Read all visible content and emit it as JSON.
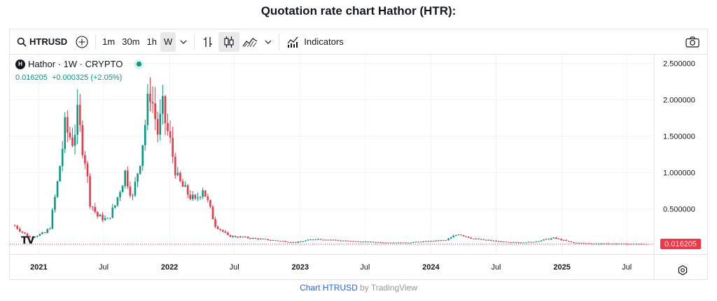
{
  "page_title": "Quotation rate chart Hathor (HTR):",
  "toolbar": {
    "symbol": "HTRUSD",
    "intervals": [
      "1m",
      "30m",
      "1h",
      "W"
    ],
    "active_interval": "W",
    "indicators_label": "Indicators",
    "icons": [
      "search-icon",
      "add-symbol-icon",
      "chevron-down-icon",
      "bar-style-icon",
      "candles-icon",
      "area-icon",
      "indicators-icon",
      "camera-icon"
    ]
  },
  "legend": {
    "name": "Hathor · 1W · CRYPTO",
    "last_price": "0.016205",
    "change": "+0.000325 (+2.05%)"
  },
  "price_tag": "0.016205",
  "attribution": {
    "link_text": "Chart HTRUSD",
    "suffix": " by TradingView"
  },
  "colors": {
    "up": "#089981",
    "down": "#f23645",
    "grid": "#f0f3fa",
    "last_price_line": "#f23645"
  },
  "chart_data": {
    "type": "candlestick",
    "timeframe": "1W",
    "y_ticks": [
      0.5,
      1.0,
      1.5,
      2.0,
      2.5
    ],
    "y_tick_labels": [
      "0.500000",
      "1.000000",
      "1.500000",
      "2.000000",
      "2.500000"
    ],
    "ylim": [
      -0.12,
      2.62
    ],
    "x_ticks": [
      {
        "label": "2021",
        "date": "2021-01-01",
        "bold": true
      },
      {
        "label": "Jul",
        "date": "2021-07-01",
        "bold": false
      },
      {
        "label": "2022",
        "date": "2022-01-01",
        "bold": true
      },
      {
        "label": "Jul",
        "date": "2022-07-01",
        "bold": false
      },
      {
        "label": "2023",
        "date": "2023-01-01",
        "bold": true
      },
      {
        "label": "Jul",
        "date": "2023-07-01",
        "bold": false
      },
      {
        "label": "2024",
        "date": "2024-01-01",
        "bold": true
      },
      {
        "label": "Jul",
        "date": "2024-07-01",
        "bold": false
      },
      {
        "label": "2025",
        "date": "2025-01-01",
        "bold": true
      },
      {
        "label": "Jul",
        "date": "2025-07-01",
        "bold": false
      }
    ],
    "xlim": [
      "2020-10-12",
      "2025-09-15"
    ],
    "last_price": 0.016205,
    "close_keypoints": [
      [
        "2020-10-26",
        0.27
      ],
      [
        "2020-11-16",
        0.18
      ],
      [
        "2020-12-07",
        0.11
      ],
      [
        "2020-12-28",
        0.14
      ],
      [
        "2021-01-18",
        0.17
      ],
      [
        "2021-02-01",
        0.25
      ],
      [
        "2021-02-22",
        0.85
      ],
      [
        "2021-03-15",
        1.6
      ],
      [
        "2021-04-05",
        1.45
      ],
      [
        "2021-04-19",
        1.75
      ],
      [
        "2021-05-10",
        1.2
      ],
      [
        "2021-05-24",
        0.6
      ],
      [
        "2021-06-14",
        0.4
      ],
      [
        "2021-07-12",
        0.35
      ],
      [
        "2021-08-02",
        0.55
      ],
      [
        "2021-08-30",
        1.0
      ],
      [
        "2021-09-20",
        0.65
      ],
      [
        "2021-10-11",
        1.2
      ],
      [
        "2021-11-08",
        2.15
      ],
      [
        "2021-11-29",
        1.55
      ],
      [
        "2021-12-13",
        1.85
      ],
      [
        "2022-01-03",
        1.4
      ],
      [
        "2022-01-24",
        0.9
      ],
      [
        "2022-02-14",
        0.75
      ],
      [
        "2022-03-14",
        0.6
      ],
      [
        "2022-04-04",
        0.8
      ],
      [
        "2022-05-09",
        0.28
      ],
      [
        "2022-06-13",
        0.13
      ],
      [
        "2022-09-05",
        0.09
      ],
      [
        "2022-12-19",
        0.04
      ],
      [
        "2023-02-13",
        0.09
      ],
      [
        "2023-06-12",
        0.05
      ],
      [
        "2023-10-16",
        0.035
      ],
      [
        "2024-02-12",
        0.07
      ],
      [
        "2024-03-18",
        0.16
      ],
      [
        "2024-04-29",
        0.09
      ],
      [
        "2024-08-05",
        0.04
      ],
      [
        "2024-10-07",
        0.045
      ],
      [
        "2024-12-09",
        0.1
      ],
      [
        "2025-02-03",
        0.035
      ],
      [
        "2025-04-07",
        0.025
      ],
      [
        "2025-07-07",
        0.022
      ],
      [
        "2025-08-25",
        0.016205
      ]
    ]
  }
}
